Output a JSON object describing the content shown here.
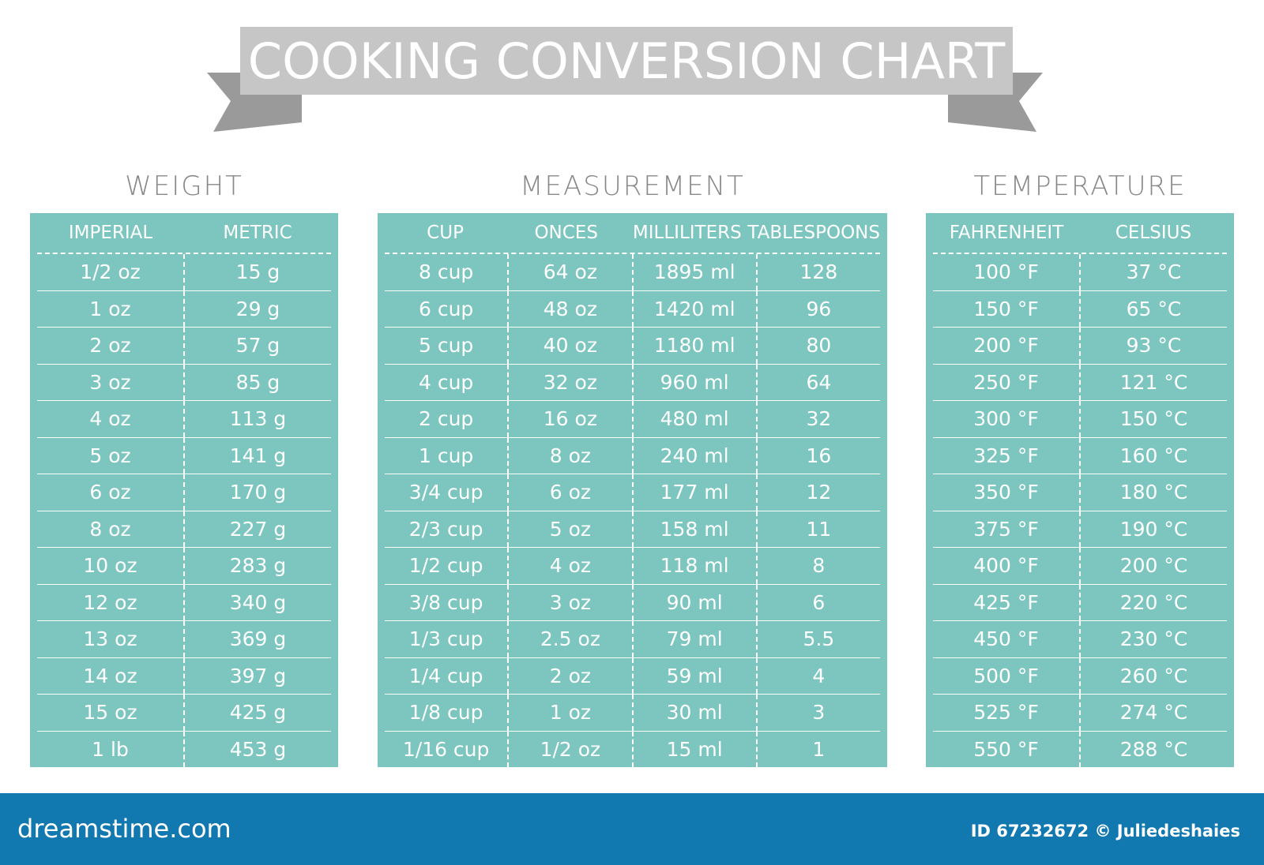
{
  "title": "COOKING CONVERSION CHART",
  "weight": {
    "heading": "WEIGHT",
    "columns": [
      "IMPERIAL",
      "METRIC"
    ],
    "rows": [
      [
        "1/2 oz",
        "15 g"
      ],
      [
        "1 oz",
        "29 g"
      ],
      [
        "2 oz",
        "57 g"
      ],
      [
        "3 oz",
        "85 g"
      ],
      [
        "4 oz",
        "113 g"
      ],
      [
        "5 oz",
        "141 g"
      ],
      [
        "6 oz",
        "170 g"
      ],
      [
        "8 oz",
        "227 g"
      ],
      [
        "10 oz",
        "283 g"
      ],
      [
        "12 oz",
        "340 g"
      ],
      [
        "13 oz",
        "369 g"
      ],
      [
        "14 oz",
        "397 g"
      ],
      [
        "15 oz",
        "425 g"
      ],
      [
        "1 lb",
        "453 g"
      ]
    ]
  },
  "measurement": {
    "heading": "MEASUREMENT",
    "columns": [
      "CUP",
      "ONCES",
      "MILLILITERS",
      "TABLESPOONS"
    ],
    "rows": [
      [
        "8 cup",
        "64 oz",
        "1895 ml",
        "128"
      ],
      [
        "6 cup",
        "48 oz",
        "1420 ml",
        "96"
      ],
      [
        "5 cup",
        "40 oz",
        "1180 ml",
        "80"
      ],
      [
        "4 cup",
        "32 oz",
        "960 ml",
        "64"
      ],
      [
        "2 cup",
        "16 oz",
        "480 ml",
        "32"
      ],
      [
        "1 cup",
        "8 oz",
        "240 ml",
        "16"
      ],
      [
        "3/4 cup",
        "6 oz",
        "177 ml",
        "12"
      ],
      [
        "2/3 cup",
        "5 oz",
        "158 ml",
        "11"
      ],
      [
        "1/2 cup",
        "4 oz",
        "118 ml",
        "8"
      ],
      [
        "3/8 cup",
        "3 oz",
        "90 ml",
        "6"
      ],
      [
        "1/3 cup",
        "2.5 oz",
        "79 ml",
        "5.5"
      ],
      [
        "1/4 cup",
        "2 oz",
        "59 ml",
        "4"
      ],
      [
        "1/8 cup",
        "1 oz",
        "30 ml",
        "3"
      ],
      [
        "1/16 cup",
        "1/2 oz",
        "15 ml",
        "1"
      ]
    ]
  },
  "temperature": {
    "heading": "TEMPERATURE",
    "columns": [
      "FAHRENHEIT",
      "CELSIUS"
    ],
    "rows": [
      [
        "100 °F",
        "37 °C"
      ],
      [
        "150 °F",
        "65 °C"
      ],
      [
        "200 °F",
        "93 °C"
      ],
      [
        "250 °F",
        "121 °C"
      ],
      [
        "300 °F",
        "150 °C"
      ],
      [
        "325 °F",
        "160 °C"
      ],
      [
        "350 °F",
        "180 °C"
      ],
      [
        "375 °F",
        "190 °C"
      ],
      [
        "400 °F",
        "200 °C"
      ],
      [
        "425 °F",
        "220 °C"
      ],
      [
        "450 °F",
        "230 °C"
      ],
      [
        "500 °F",
        "260 °C"
      ],
      [
        "525 °F",
        "274 °C"
      ],
      [
        "550 °F",
        "288 °C"
      ]
    ]
  },
  "footer": {
    "site": "dreamstime.com",
    "credit": "ID 67232672 © Juliedeshaies"
  }
}
